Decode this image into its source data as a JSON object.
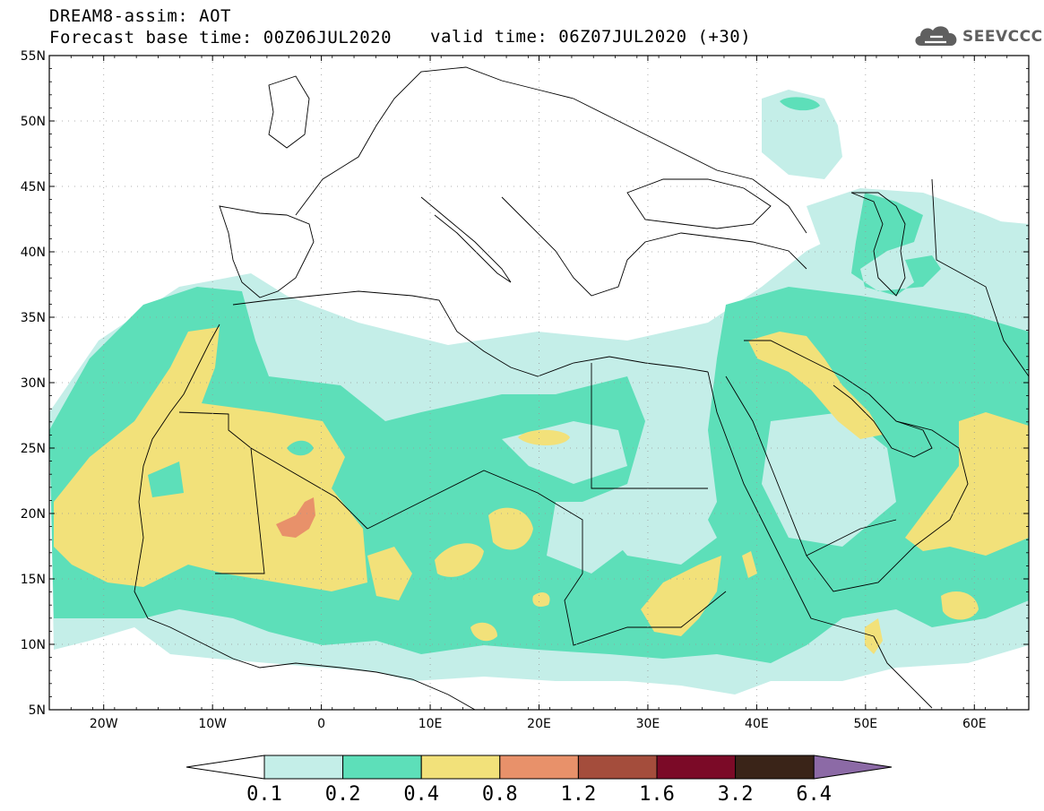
{
  "header": {
    "title": "DREAM8-assim: AOT",
    "base_time": "Forecast base time: 00Z06JUL2020",
    "valid_time": "valid time: 06Z07JUL2020 (+30)"
  },
  "logo": {
    "text": "SEEVCCC",
    "icon": "cloud-icon"
  },
  "map": {
    "lon_range": [
      -25,
      65
    ],
    "lat_range": [
      5,
      55
    ],
    "lon_ticks": [
      "20W",
      "10W",
      "0",
      "10E",
      "20E",
      "30E",
      "40E",
      "50E",
      "60E"
    ],
    "lat_ticks": [
      "55N",
      "50N",
      "45N",
      "40N",
      "35N",
      "30N",
      "25N",
      "20N",
      "15N",
      "10N",
      "5N"
    ],
    "grid": "dotted"
  },
  "colorbar": {
    "levels": [
      "0.1",
      "0.2",
      "0.4",
      "0.8",
      "1.2",
      "1.6",
      "3.2",
      "6.4"
    ],
    "colors": [
      "#c4eee8",
      "#5ddfb9",
      "#f2e17a",
      "#e8916a",
      "#a44d3c",
      "#7b0a27",
      "#3a2418",
      "#8c6aa6"
    ],
    "under_color": "#ffffff"
  }
}
